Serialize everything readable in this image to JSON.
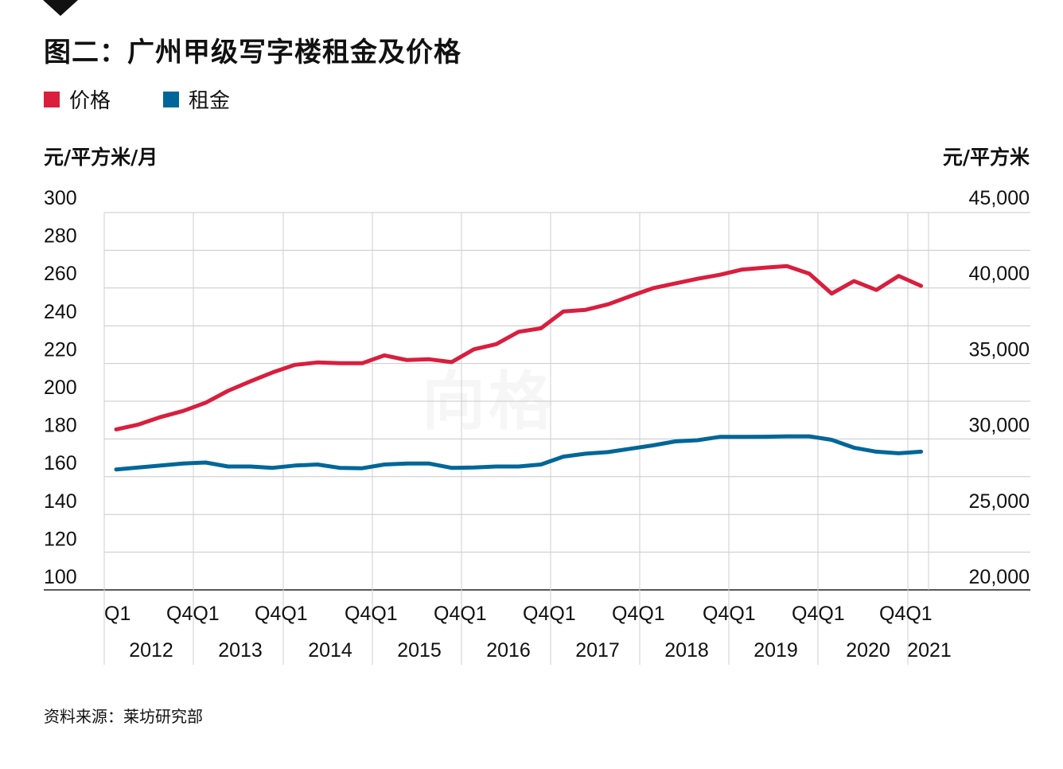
{
  "title": "图二：广州甲级写字楼租金及价格",
  "source": "资料来源：莱坊研究部",
  "watermark": "向格",
  "legend": [
    {
      "label": "价格",
      "color": "#d91e3e"
    },
    {
      "label": "租金",
      "color": "#006699"
    }
  ],
  "chart_data": {
    "type": "line",
    "title": "图二：广州甲级写字楼租金及价格",
    "yaxis_left": {
      "label": "元/平方米/月",
      "range": [
        100,
        300
      ],
      "ticks": [
        "100",
        "120",
        "140",
        "160",
        "180",
        "200",
        "220",
        "240",
        "260",
        "280",
        "300"
      ]
    },
    "yaxis_right": {
      "label": "元/平方米",
      "range": [
        20000,
        45000
      ],
      "ticks": [
        "20,000",
        "25,000",
        "30,000",
        "35,000",
        "40,000",
        "45,000"
      ]
    },
    "xaxis": {
      "quarter_ticks": [
        "Q1",
        "Q4Q1",
        "Q4Q1",
        "Q4Q1",
        "Q4Q1",
        "Q4Q1",
        "Q4Q1",
        "Q4Q1",
        "Q4Q1",
        "Q4Q1"
      ],
      "year_labels": [
        "2012",
        "2013",
        "2014",
        "2015",
        "2016",
        "2017",
        "2018",
        "2019",
        "2020",
        "2021"
      ]
    },
    "grid": true,
    "legend_position": "top-left",
    "series": [
      {
        "name": "价格",
        "axis": "right",
        "color": "#d91e3e",
        "values": [
          30160,
          30470,
          30950,
          31330,
          31850,
          32600,
          33200,
          33770,
          34250,
          34400,
          34350,
          34350,
          34850,
          34550,
          34600,
          34420,
          35230,
          35560,
          36340,
          36560,
          37630,
          37730,
          38080,
          38600,
          39100,
          39400,
          39700,
          39950,
          40280,
          40400,
          40500,
          40020,
          38760,
          39550,
          38990,
          39880,
          39250
        ]
      },
      {
        "name": "租金",
        "axis": "left",
        "color": "#006699",
        "values": [
          161,
          162,
          163,
          164,
          164.5,
          162.5,
          162.5,
          161.8,
          163,
          163.5,
          161.8,
          161.6,
          163.5,
          164,
          164,
          161.8,
          162,
          162.5,
          162.5,
          163.5,
          167.5,
          169,
          169.8,
          171.5,
          173.2,
          175.2,
          175.8,
          177.5,
          177.5,
          177.6,
          177.8,
          177.8,
          176,
          172,
          170,
          169.2,
          170
        ]
      }
    ]
  }
}
